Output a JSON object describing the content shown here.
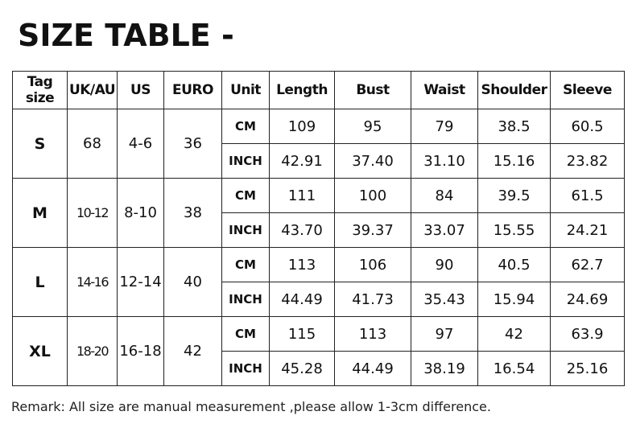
{
  "title": "SIZE TABLE -",
  "headers": [
    "Tag size",
    "UK/AU",
    "US",
    "EURO",
    "Unit",
    "Length",
    "Bust",
    "Waist",
    "Shoulder",
    "Sleeve"
  ],
  "rows": [
    {
      "tag": "S",
      "uk": "68",
      "us": "4-6",
      "euro": "36",
      "cm": {
        "unit": "CM",
        "values": [
          "109",
          "95",
          "79",
          "38.5",
          "60.5"
        ]
      },
      "inch": {
        "unit": "INCH",
        "values": [
          "42.91",
          "37.40",
          "31.10",
          "15.16",
          "23.82"
        ]
      }
    },
    {
      "tag": "M",
      "uk": "10-12",
      "us": "8-10",
      "euro": "38",
      "cm": {
        "unit": "CM",
        "values": [
          "111",
          "100",
          "84",
          "39.5",
          "61.5"
        ]
      },
      "inch": {
        "unit": "INCH",
        "values": [
          "43.70",
          "39.37",
          "33.07",
          "15.55",
          "24.21"
        ]
      }
    },
    {
      "tag": "L",
      "uk": "14-16",
      "us": "12-14",
      "euro": "40",
      "cm": {
        "unit": "CM",
        "values": [
          "113",
          "106",
          "90",
          "40.5",
          "62.7"
        ]
      },
      "inch": {
        "unit": "INCH",
        "values": [
          "44.49",
          "41.73",
          "35.43",
          "15.94",
          "24.69"
        ]
      }
    },
    {
      "tag": "XL",
      "uk": "18-20",
      "us": "16-18",
      "euro": "42",
      "cm": {
        "unit": "CM",
        "values": [
          "115",
          "113",
          "97",
          "42",
          "63.9"
        ]
      },
      "inch": {
        "unit": "INCH",
        "values": [
          "45.28",
          "44.49",
          "38.19",
          "16.54",
          "25.16"
        ]
      }
    }
  ],
  "remark": "Remark: All size are manual measurement ,please allow 1-3cm difference."
}
